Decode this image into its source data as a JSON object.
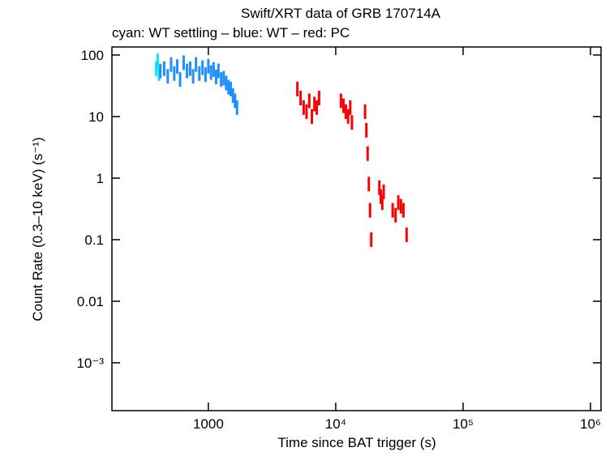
{
  "chart_data": {
    "type": "scatter",
    "title": "Swift/XRT data of GRB 170714A",
    "subtitle": "cyan: WT settling – blue: WT – red: PC",
    "x_label": "Time since BAT trigger (s)",
    "y_label": "Count Rate (0.3–10 keV) (s⁻¹)",
    "xscale": "log",
    "yscale": "log",
    "xlim": [
      175,
      1210000
    ],
    "ylim": [
      0.000167,
      135
    ],
    "xticks": [
      1000,
      {
        "value": 10000,
        "label": "10⁴"
      },
      {
        "value": 100000,
        "label": "10⁵"
      },
      {
        "value": 1000000,
        "label": "10⁶"
      }
    ],
    "yticks": [
      100,
      10,
      1,
      0.1,
      0.01,
      {
        "value": 0.001,
        "label": "10⁻³"
      }
    ],
    "series": [
      {
        "color": "#00e5ff",
        "x": [
          390,
          400,
          410
        ],
        "values": [
          60,
          80,
          50
        ]
      },
      {
        "color": "#1e8fff",
        "x": [
          420,
          450,
          480,
          510,
          540,
          570,
          600,
          640,
          680,
          720,
          760,
          800,
          850,
          900,
          950,
          1000,
          1050,
          1100,
          1150,
          1200,
          1260,
          1320,
          1380,
          1440,
          1500,
          1560,
          1620,
          1680
        ],
        "values": [
          55,
          60,
          45,
          70,
          50,
          65,
          40,
          75,
          55,
          60,
          45,
          70,
          50,
          62,
          48,
          66,
          52,
          58,
          44,
          55,
          40,
          42,
          35,
          30,
          28,
          22,
          18,
          14
        ]
      },
      {
        "color": "#ff0000",
        "x": [
          5000,
          5300,
          5600,
          5900,
          6200,
          6500,
          6800,
          7100,
          7400,
          11000,
          11500,
          12000,
          12500,
          13000,
          13400,
          17000,
          17400,
          17800,
          18200,
          18600,
          19000,
          22000,
          22600,
          23200,
          23800,
          28000,
          29500,
          31000,
          32500,
          34000,
          36000
        ],
        "values": [
          28,
          20,
          14,
          12,
          18,
          10,
          16,
          14,
          20,
          18,
          15,
          12,
          10,
          14,
          8,
          12,
          6,
          2.5,
          0.8,
          0.3,
          0.1,
          0.7,
          0.5,
          0.4,
          0.6,
          0.3,
          0.25,
          0.4,
          0.35,
          0.3,
          0.12
        ]
      }
    ]
  }
}
